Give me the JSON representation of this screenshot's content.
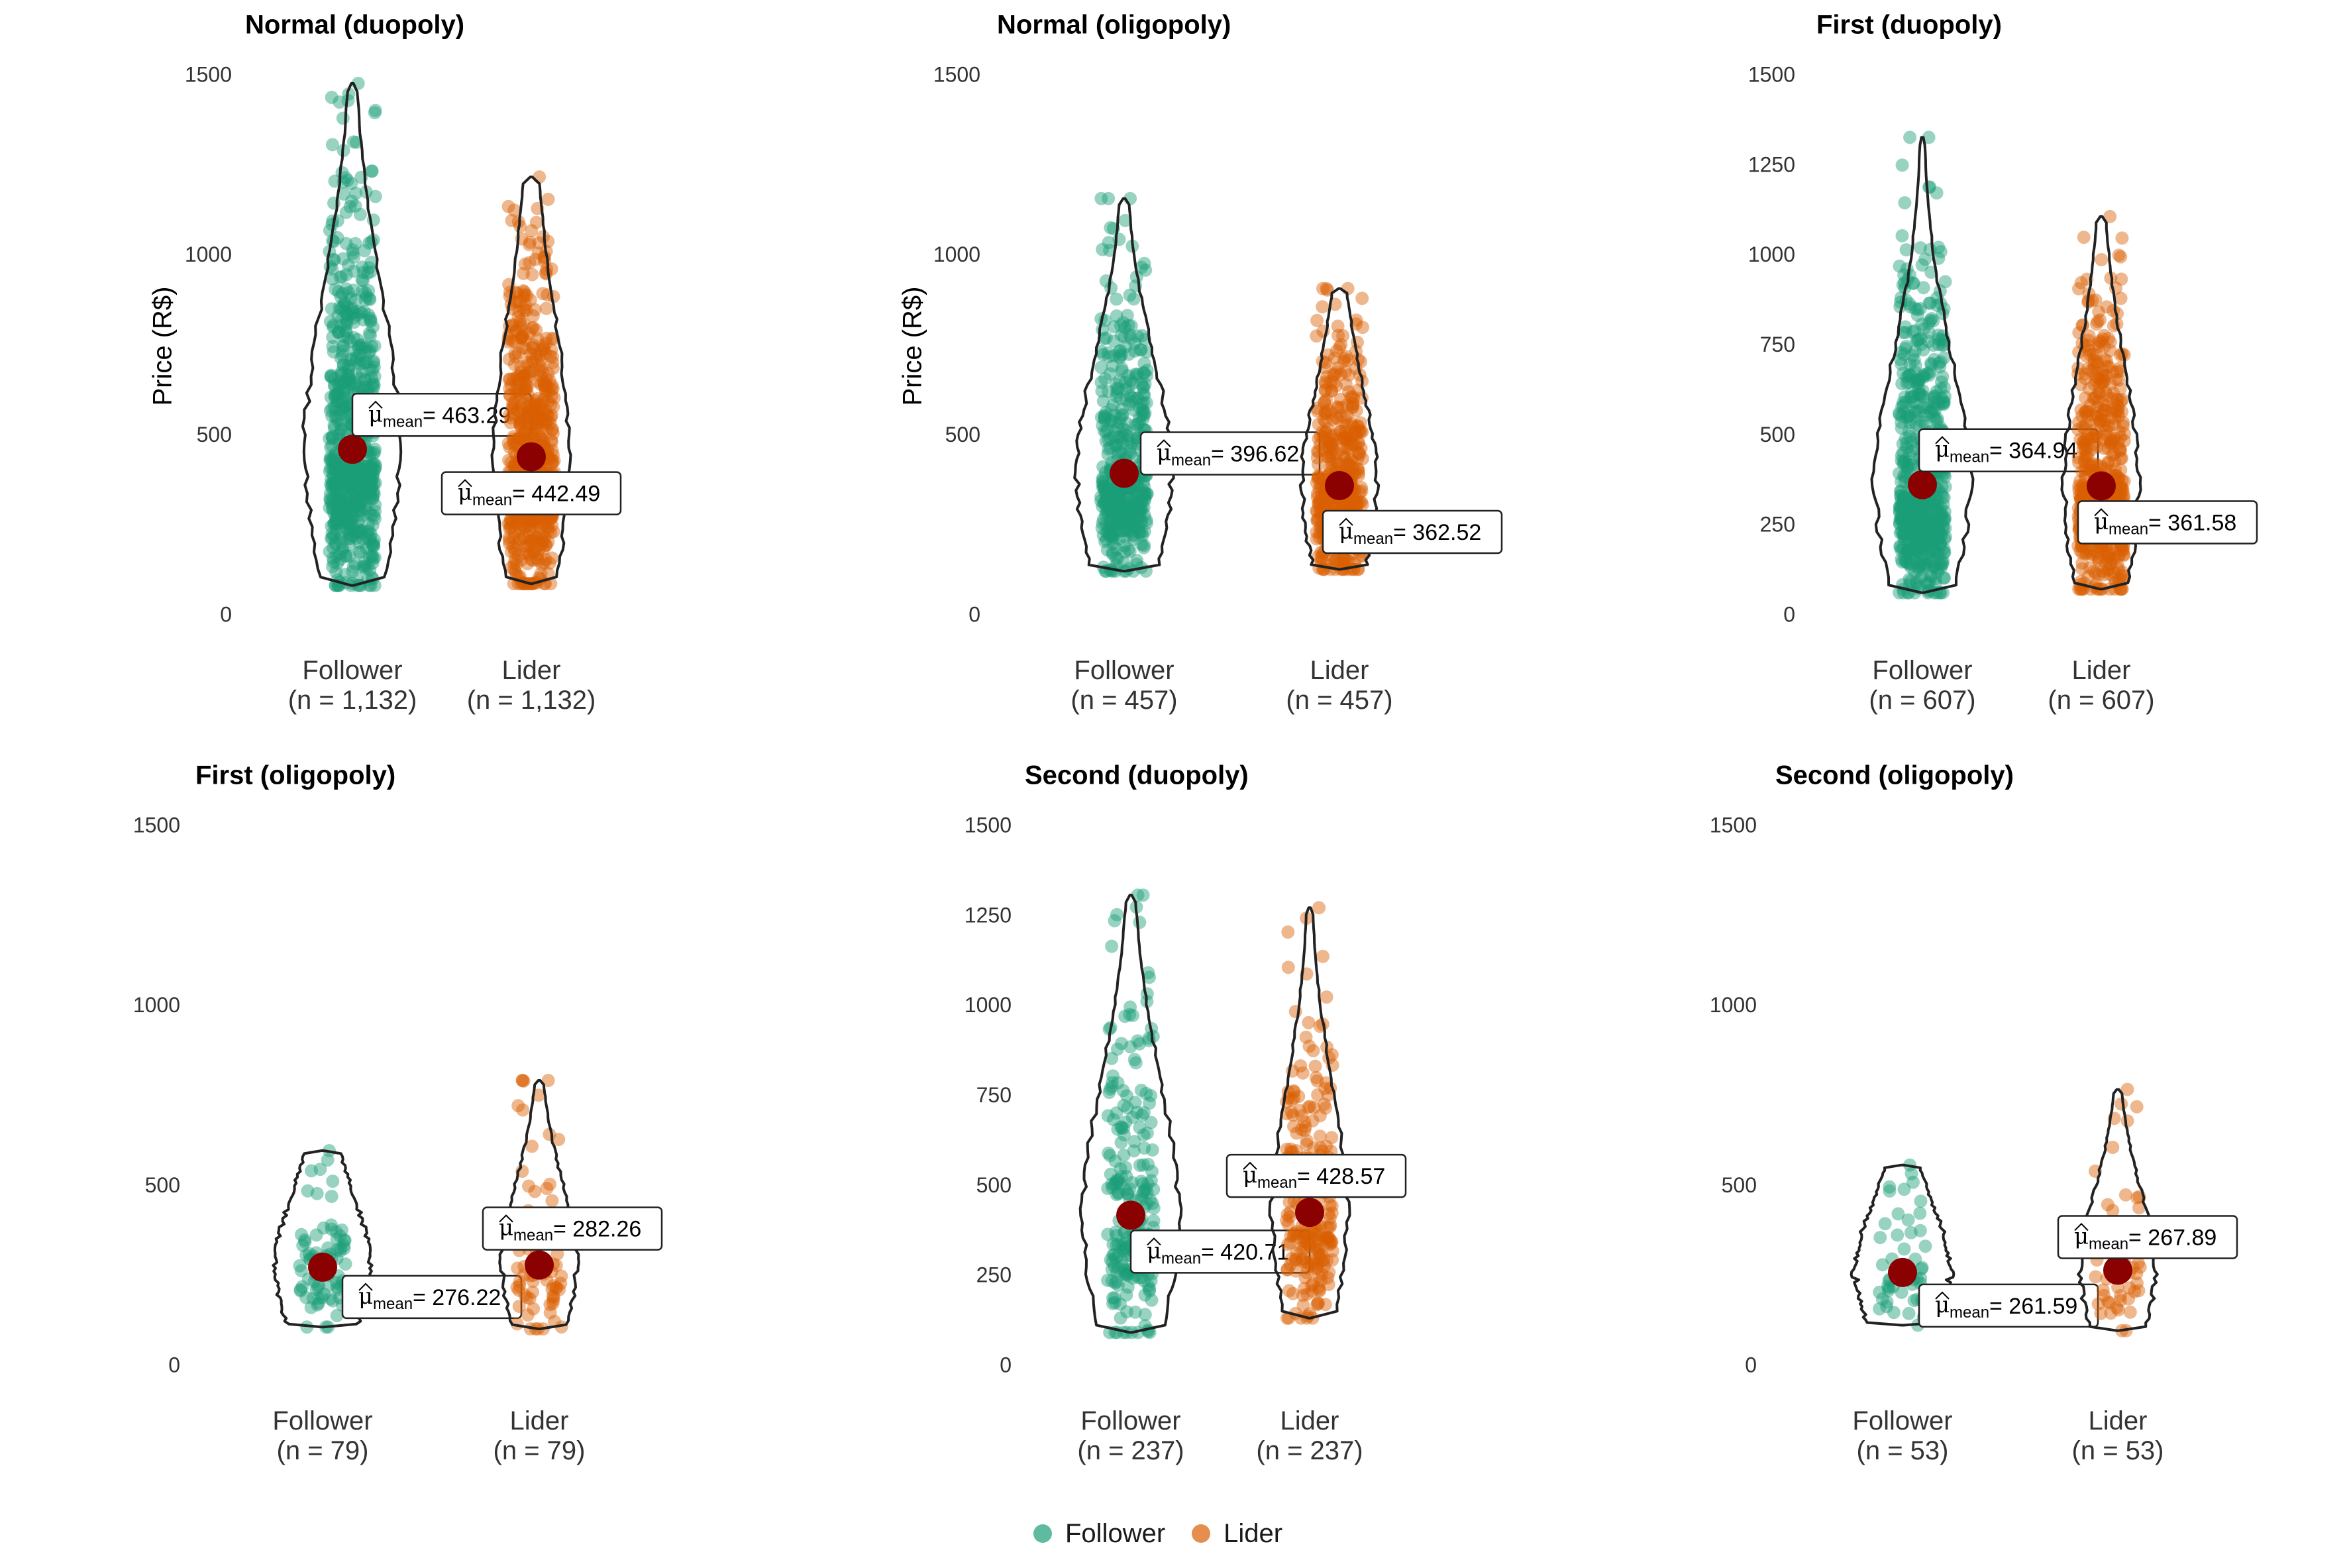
{
  "colors": {
    "follower": "#1B9E77",
    "lider": "#D95F02",
    "mean_point": "#8B0000",
    "violin": "#222222",
    "axis_text": "#333333"
  },
  "legend": [
    {
      "label": "Follower",
      "color": "#1B9E77"
    },
    {
      "label": "Lider",
      "color": "#D95F02"
    }
  ],
  "chart_data": [
    {
      "type": "violin",
      "title": "Normal (duopoly)",
      "ylabel": "Price (R$)",
      "ylim": [
        0,
        1500
      ],
      "yticks": [
        0,
        500,
        1000,
        1500
      ],
      "grid": false,
      "groups": [
        {
          "name": "Follower",
          "n_label": "(n = 1,132)",
          "mean": 463.29,
          "mean_label": "= 463.29",
          "min": 85,
          "max": 1480
        },
        {
          "name": "Lider",
          "n_label": "(n = 1,132)",
          "mean": 442.49,
          "mean_label": "= 442.49",
          "min": 90,
          "max": 1220
        }
      ]
    },
    {
      "type": "violin",
      "title": "Normal (oligopoly)",
      "ylabel": "Price (R$)",
      "ylim": [
        0,
        1500
      ],
      "yticks": [
        0,
        500,
        1000,
        1500
      ],
      "grid": false,
      "groups": [
        {
          "name": "Follower",
          "n_label": "(n = 457)",
          "mean": 396.62,
          "mean_label": "= 396.62",
          "min": 125,
          "max": 1160
        },
        {
          "name": "Lider",
          "n_label": "(n = 457)",
          "mean": 362.52,
          "mean_label": "= 362.52",
          "min": 130,
          "max": 910
        }
      ]
    },
    {
      "type": "violin",
      "title": "First (duopoly)",
      "ylim": [
        0,
        1500
      ],
      "yticks": [
        0,
        250,
        500,
        750,
        1000,
        1250,
        1500
      ],
      "grid": false,
      "groups": [
        {
          "name": "Follower",
          "n_label": "(n = 607)",
          "mean": 364.94,
          "mean_label": "= 364.94",
          "min": 65,
          "max": 1330
        },
        {
          "name": "Lider",
          "n_label": "(n = 607)",
          "mean": 361.58,
          "mean_label": "= 361.58",
          "min": 75,
          "max": 1110
        }
      ]
    },
    {
      "type": "violin",
      "title": "First (oligopoly)",
      "ylim": [
        0,
        1500
      ],
      "yticks": [
        0,
        500,
        1000,
        1500
      ],
      "grid": false,
      "groups": [
        {
          "name": "Follower",
          "n_label": "(n = 79)",
          "mean": 276.22,
          "mean_label": "= 276.22",
          "min": 110,
          "max": 600
        },
        {
          "name": "Lider",
          "n_label": "(n = 79)",
          "mean": 282.26,
          "mean_label": "= 282.26",
          "min": 105,
          "max": 795
        }
      ]
    },
    {
      "type": "violin",
      "title": "Second (duopoly)",
      "ylim": [
        0,
        1500
      ],
      "yticks": [
        0,
        250,
        500,
        750,
        1000,
        1250,
        1500
      ],
      "grid": false,
      "groups": [
        {
          "name": "Follower",
          "n_label": "(n = 237)",
          "mean": 420.71,
          "mean_label": "= 420.71",
          "min": 95,
          "max": 1310
        },
        {
          "name": "Lider",
          "n_label": "(n = 237)",
          "mean": 428.57,
          "mean_label": "= 428.57",
          "min": 135,
          "max": 1275
        }
      ]
    },
    {
      "type": "violin",
      "title": "Second (oligopoly)",
      "ylim": [
        0,
        1500
      ],
      "yticks": [
        0,
        500,
        1000,
        1500
      ],
      "grid": false,
      "groups": [
        {
          "name": "Follower",
          "n_label": "(n = 53)",
          "mean": 261.59,
          "mean_label": "= 261.59",
          "min": 115,
          "max": 560
        },
        {
          "name": "Lider",
          "n_label": "(n = 53)",
          "mean": 267.89,
          "mean_label": "= 267.89",
          "min": 100,
          "max": 770
        }
      ]
    }
  ]
}
